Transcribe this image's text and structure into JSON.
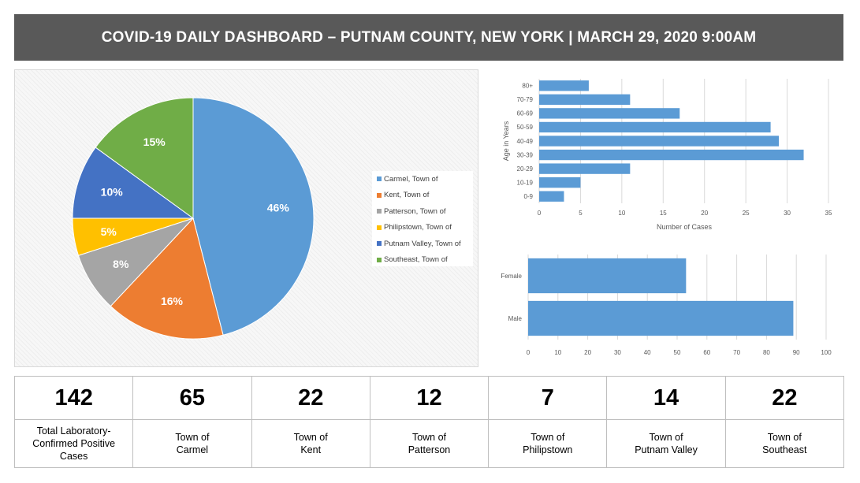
{
  "header": {
    "title": "COVID-19 DAILY DASHBOARD – PUTNAM COUNTY, NEW YORK  | MARCH 29, 2020  9:00AM"
  },
  "chart_data": [
    {
      "type": "pie",
      "labels": [
        "Carmel, Town of",
        "Kent, Town of",
        "Patterson, Town of",
        "Philipstown, Town of",
        "Putnam Valley, Town of",
        "Southeast, Town of"
      ],
      "values": [
        46,
        16,
        8,
        5,
        10,
        15
      ],
      "value_labels": [
        "46%",
        "16%",
        "8%",
        "5%",
        "10%",
        "15%"
      ],
      "colors": [
        "#5b9bd5",
        "#ed7d31",
        "#a5a5a5",
        "#ffc000",
        "#4472c4",
        "#70ad47"
      ],
      "legend": "right"
    },
    {
      "type": "bar",
      "orientation": "horizontal",
      "categories": [
        "0-9",
        "10-19",
        "20-29",
        "30-39",
        "40-49",
        "50-59",
        "60-69",
        "70-79",
        "80+"
      ],
      "values": [
        3,
        5,
        11,
        32,
        29,
        28,
        17,
        11,
        6
      ],
      "xlabel": "Number of Cases",
      "ylabel": "Age in Years",
      "xlim": [
        0,
        35
      ],
      "xticks": [
        "0",
        "5",
        "10",
        "15",
        "20",
        "25",
        "30",
        "35"
      ],
      "grid": true,
      "color": "#5b9bd5"
    },
    {
      "type": "bar",
      "orientation": "horizontal",
      "categories": [
        "Male",
        "Female"
      ],
      "values": [
        89,
        53
      ],
      "xlim": [
        0,
        100
      ],
      "xticks": [
        "0",
        "10",
        "20",
        "30",
        "40",
        "50",
        "60",
        "70",
        "80",
        "90",
        "100"
      ],
      "grid": true,
      "color": "#5b9bd5"
    }
  ],
  "stats": [
    {
      "value": "142",
      "label": [
        "Total Laboratory-",
        "Confirmed Positive",
        "Cases"
      ]
    },
    {
      "value": "65",
      "label": [
        "Town of",
        "Carmel"
      ]
    },
    {
      "value": "22",
      "label": [
        "Town of",
        "Kent"
      ]
    },
    {
      "value": "12",
      "label": [
        "Town of",
        "Patterson"
      ]
    },
    {
      "value": "7",
      "label": [
        "Town of",
        "Philipstown"
      ]
    },
    {
      "value": "14",
      "label": [
        "Town of",
        "Putnam Valley"
      ]
    },
    {
      "value": "22",
      "label": [
        "Town of",
        "Southeast"
      ]
    }
  ]
}
